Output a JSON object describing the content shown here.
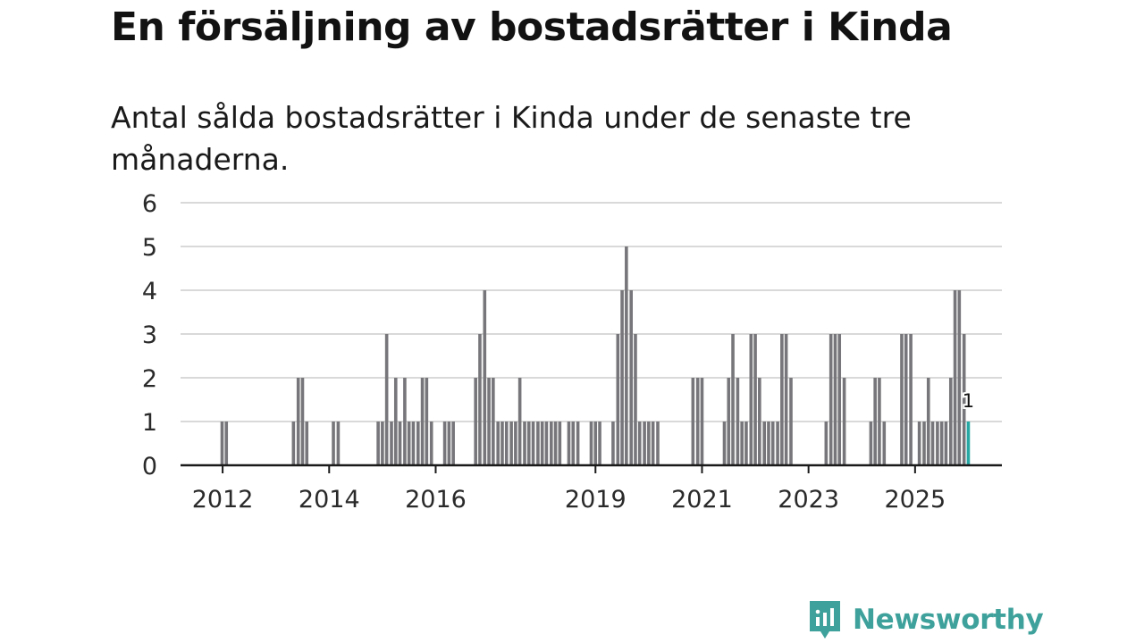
{
  "header": {
    "title": "En försäljning av bostadsrätter i Kinda",
    "subtitle": "Antal sålda bostadsrätter i Kinda under de senaste tre månaderna."
  },
  "branding": {
    "logo_text": "Newsworthy"
  },
  "colors": {
    "bar": "#77767a",
    "highlight": "#27a8a4",
    "grid": "#d9d9d9",
    "axis": "#1a1a1a",
    "brand": "#3fa19b"
  },
  "chart_data": {
    "type": "bar",
    "title": "En försäljning av bostadsrätter i Kinda",
    "subtitle": "Antal sålda bostadsrätter i Kinda under de senaste tre månaderna.",
    "xlabel": "",
    "ylabel": "",
    "ylim": [
      0,
      6
    ],
    "yticks": [
      0,
      1,
      2,
      3,
      4,
      5,
      6
    ],
    "grid": true,
    "x_range": [
      2011.21,
      2026.63
    ],
    "xticks": [
      {
        "label": "2012",
        "x": 2012
      },
      {
        "label": "2014",
        "x": 2014
      },
      {
        "label": "2016",
        "x": 2016
      },
      {
        "label": "2019",
        "x": 2019
      },
      {
        "label": "2021",
        "x": 2021
      },
      {
        "label": "2023",
        "x": 2023
      },
      {
        "label": "2025",
        "x": 2025
      }
    ],
    "series": [
      {
        "name": "Antal sålda bostadsrätter",
        "x": [
          2011.99,
          2012.07,
          2013.33,
          2013.42,
          2013.5,
          2013.58,
          2014.08,
          2014.17,
          2014.92,
          2015.0,
          2015.08,
          2015.17,
          2015.25,
          2015.33,
          2015.42,
          2015.5,
          2015.58,
          2015.67,
          2015.75,
          2015.83,
          2015.92,
          2016.0,
          2016.17,
          2016.25,
          2016.33,
          2016.42,
          2016.75,
          2016.83,
          2016.92,
          2017.0,
          2017.08,
          2017.17,
          2017.25,
          2017.33,
          2017.42,
          2017.5,
          2017.58,
          2017.67,
          2017.75,
          2017.83,
          2017.92,
          2018.0,
          2018.08,
          2018.17,
          2018.25,
          2018.33,
          2018.5,
          2018.58,
          2018.67,
          2018.92,
          2019.0,
          2019.08,
          2019.33,
          2019.42,
          2019.5,
          2019.58,
          2019.67,
          2019.75,
          2019.83,
          2019.92,
          2020.0,
          2020.08,
          2020.17,
          2020.83,
          2020.92,
          2021.0,
          2021.42,
          2021.5,
          2021.58,
          2021.67,
          2021.75,
          2021.83,
          2021.92,
          2022.0,
          2022.08,
          2022.17,
          2022.25,
          2022.33,
          2022.42,
          2022.5,
          2022.58,
          2022.67,
          2022.75,
          2023.33,
          2023.42,
          2023.5,
          2023.58,
          2023.67,
          2024.17,
          2024.25,
          2024.33,
          2024.42,
          2024.5,
          2024.75,
          2024.83,
          2024.92,
          2025.08,
          2025.17,
          2025.25,
          2025.33,
          2025.42,
          2025.5,
          2025.58,
          2025.67,
          2025.75,
          2025.83,
          2025.92,
          2026.0
        ],
        "values": [
          1,
          1,
          1,
          2,
          2,
          1,
          1,
          1,
          1,
          1,
          3,
          1,
          2,
          1,
          2,
          1,
          1,
          1,
          2,
          2,
          1,
          0,
          1,
          1,
          1,
          0,
          2,
          3,
          4,
          2,
          2,
          1,
          1,
          1,
          1,
          1,
          2,
          1,
          1,
          1,
          1,
          1,
          1,
          1,
          1,
          1,
          1,
          1,
          1,
          1,
          1,
          1,
          1,
          3,
          4,
          5,
          4,
          3,
          1,
          1,
          1,
          1,
          1,
          2,
          2,
          2,
          1,
          2,
          3,
          2,
          1,
          1,
          3,
          3,
          2,
          1,
          1,
          1,
          1,
          3,
          3,
          2,
          0,
          1,
          3,
          3,
          3,
          2,
          1,
          2,
          2,
          1,
          0,
          3,
          3,
          3,
          1,
          1,
          2,
          1,
          1,
          1,
          1,
          2,
          4,
          4,
          3,
          1
        ]
      }
    ],
    "highlight": {
      "x": 2026.0,
      "value": 1,
      "label": "1"
    }
  }
}
